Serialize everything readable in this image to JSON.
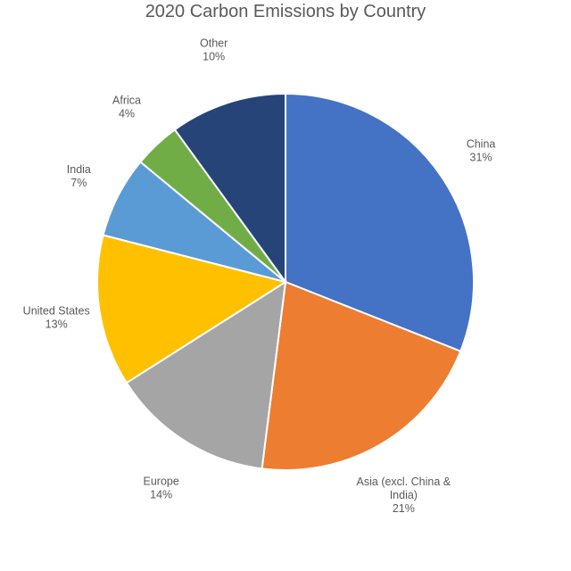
{
  "chart_data": {
    "type": "pie",
    "title": "2020 Carbon Emissions by Country",
    "slices": [
      {
        "label": [
          "China"
        ],
        "pct_label": "31%",
        "value": 31,
        "color": "#4472C4"
      },
      {
        "label": [
          "Asia (excl. China &",
          "India)"
        ],
        "pct_label": "21%",
        "value": 21,
        "color": "#ED7D31"
      },
      {
        "label": [
          "Europe"
        ],
        "pct_label": "14%",
        "value": 14,
        "color": "#A5A5A5"
      },
      {
        "label": [
          "United States"
        ],
        "pct_label": "13%",
        "value": 13,
        "color": "#FFC000"
      },
      {
        "label": [
          "India"
        ],
        "pct_label": "7%",
        "value": 7,
        "color": "#5B9BD5"
      },
      {
        "label": [
          "Africa"
        ],
        "pct_label": "4%",
        "value": 4,
        "color": "#70AD47"
      },
      {
        "label": [
          "Other"
        ],
        "pct_label": "10%",
        "value": 10,
        "color": "#264478"
      }
    ],
    "start_angle": "12 o'clock",
    "direction": "clockwise",
    "legend": "none",
    "data_labels": "outside"
  }
}
